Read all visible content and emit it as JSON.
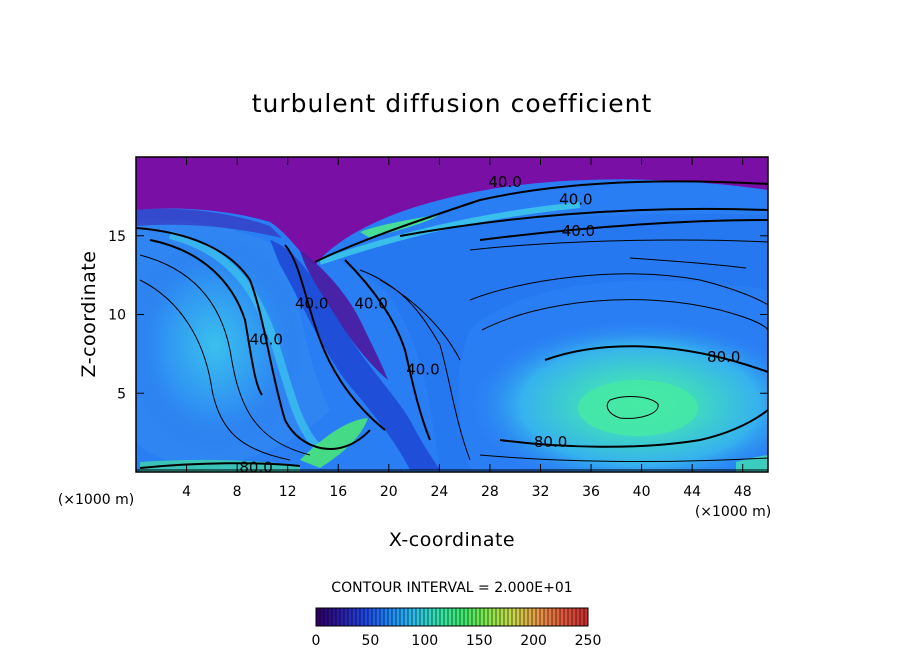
{
  "chart_data": {
    "type": "heatmap",
    "title": "turbulent diffusion coefficient",
    "xlabel": "X-coordinate",
    "ylabel": "Z-coordinate",
    "x_unit": "(×1000 m)",
    "y_unit": "(×1000 m)",
    "xlim": [
      0,
      50
    ],
    "ylim": [
      0,
      20
    ],
    "x_ticks": [
      4,
      8,
      12,
      16,
      20,
      24,
      28,
      32,
      36,
      40,
      44,
      48
    ],
    "y_ticks": [
      5,
      10,
      15
    ],
    "contour_interval_text": "CONTOUR INTERVAL = 2.000E+01",
    "contour_interval": 20,
    "contour_labels": [
      {
        "text": "40.0",
        "x": 29.2,
        "y": 18.4
      },
      {
        "text": "40.0",
        "x": 34.8,
        "y": 17.3
      },
      {
        "text": "40.0",
        "x": 35.0,
        "y": 15.3
      },
      {
        "text": "40.0",
        "x": 13.9,
        "y": 10.7
      },
      {
        "text": "40.0",
        "x": 10.3,
        "y": 8.4
      },
      {
        "text": "40.0",
        "x": 18.6,
        "y": 10.7
      },
      {
        "text": "40.0",
        "x": 22.7,
        "y": 6.5
      },
      {
        "text": "80.0",
        "x": 46.5,
        "y": 7.3
      },
      {
        "text": "80.0",
        "x": 32.8,
        "y": 1.9
      },
      {
        "text": "80.0",
        "x": 9.5,
        "y": 0.3
      }
    ],
    "colorbar": {
      "range": [
        0,
        250
      ],
      "ticks": [
        "0",
        "50",
        "100",
        "150",
        "200",
        "250"
      ],
      "colors": [
        "#2e0066",
        "#2a1fa8",
        "#1f49e6",
        "#1e8cf6",
        "#2ebfe8",
        "#34e2a8",
        "#3ee86a",
        "#86e84a",
        "#c8d84a",
        "#e89a46",
        "#e05a3c",
        "#c82f30"
      ]
    },
    "field_colors": {
      "top_layer": "#7a0fa6",
      "deep_blue": "#1e4fe0",
      "mid_blue": "#2a7ef4",
      "light_blue": "#3ab0f2",
      "cyan": "#42d8e0",
      "aqua_green": "#3ee6b2",
      "green": "#4aea72",
      "purple_dark": "#4b1aa0"
    }
  }
}
